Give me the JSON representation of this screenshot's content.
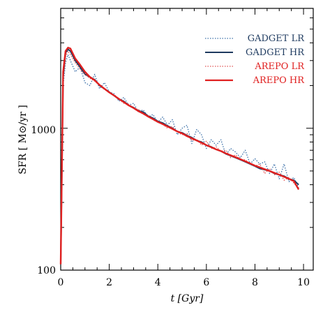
{
  "chart_data": {
    "type": "line",
    "title": "",
    "xlabel": "t  [Gyr]",
    "ylabel": "SFR  [ M⊙/yr ]",
    "xlim": [
      0,
      10.4
    ],
    "ylim": [
      100,
      7000
    ],
    "yscale": "log",
    "legend_position": "top-right",
    "x_ticks": [
      "0",
      "2",
      "4",
      "6",
      "8",
      "10"
    ],
    "y_ticks": [
      "100",
      "1000"
    ],
    "grid": false,
    "series": [
      {
        "name": "GADGET LR",
        "color": "#3a6fa8",
        "style": "dotted",
        "x": [
          0.0,
          0.1,
          0.2,
          0.3,
          0.4,
          0.6,
          0.8,
          1.0,
          1.2,
          1.4,
          1.6,
          1.8,
          2.0,
          2.2,
          2.4,
          2.6,
          2.8,
          3.0,
          3.2,
          3.4,
          3.6,
          3.8,
          4.0,
          4.2,
          4.4,
          4.6,
          4.8,
          5.0,
          5.2,
          5.4,
          5.6,
          5.8,
          6.0,
          6.2,
          6.4,
          6.6,
          6.8,
          7.0,
          7.2,
          7.4,
          7.6,
          7.8,
          8.0,
          8.2,
          8.4,
          8.6,
          8.8,
          9.0,
          9.2,
          9.4,
          9.6,
          9.8
        ],
        "values": [
          110,
          2000,
          2900,
          3300,
          3000,
          2500,
          2700,
          2100,
          2000,
          2400,
          1900,
          2100,
          1800,
          1750,
          1550,
          1650,
          1450,
          1500,
          1300,
          1350,
          1200,
          1250,
          1100,
          1200,
          1050,
          1150,
          900,
          1000,
          1050,
          780,
          980,
          900,
          720,
          830,
          760,
          830,
          650,
          720,
          680,
          620,
          700,
          560,
          610,
          560,
          580,
          480,
          560,
          440,
          560,
          420,
          450,
          380
        ]
      },
      {
        "name": "GADGET HR",
        "color": "#1e3a5f",
        "style": "solid",
        "x": [
          0.0,
          0.1,
          0.2,
          0.3,
          0.4,
          0.6,
          0.8,
          1.0,
          1.2,
          1.4,
          1.6,
          1.8,
          2.0,
          2.2,
          2.4,
          2.6,
          2.8,
          3.0,
          3.2,
          3.4,
          3.6,
          3.8,
          4.0,
          4.2,
          4.4,
          4.6,
          4.8,
          5.0,
          5.2,
          5.4,
          5.6,
          5.8,
          6.0,
          6.2,
          6.4,
          6.6,
          6.8,
          7.0,
          7.2,
          7.4,
          7.6,
          7.8,
          8.0,
          8.2,
          8.4,
          8.6,
          8.8,
          9.0,
          9.2,
          9.4,
          9.6,
          9.8
        ],
        "values": [
          110,
          2300,
          3400,
          3600,
          3500,
          3000,
          2700,
          2400,
          2300,
          2200,
          2000,
          1900,
          1800,
          1700,
          1600,
          1550,
          1450,
          1400,
          1330,
          1300,
          1220,
          1180,
          1120,
          1090,
          1040,
          1000,
          950,
          930,
          890,
          860,
          820,
          800,
          760,
          740,
          710,
          690,
          660,
          640,
          620,
          600,
          580,
          560,
          540,
          520,
          510,
          500,
          480,
          470,
          460,
          440,
          430,
          400
        ]
      },
      {
        "name": "AREPO LR",
        "color": "#e05050",
        "style": "dotted",
        "x": [
          0.0,
          0.1,
          0.2,
          0.3,
          0.4,
          0.6,
          0.8,
          1.0,
          1.2,
          1.4,
          1.6,
          1.8,
          2.0,
          2.2,
          2.4,
          2.6,
          2.8,
          3.0,
          3.2,
          3.4,
          3.6,
          3.8,
          4.0,
          4.2,
          4.4,
          4.6,
          4.8,
          5.0,
          5.2,
          5.4,
          5.6,
          5.8,
          6.0,
          6.2,
          6.4,
          6.6,
          6.8,
          7.0,
          7.2,
          7.4,
          7.6,
          7.8,
          8.0,
          8.2,
          8.4,
          8.6,
          8.8,
          9.0,
          9.2,
          9.4,
          9.6,
          9.8
        ],
        "values": [
          110,
          2200,
          3200,
          3500,
          3300,
          2900,
          2600,
          2400,
          2250,
          2150,
          2000,
          1880,
          1780,
          1700,
          1600,
          1500,
          1480,
          1380,
          1360,
          1250,
          1230,
          1150,
          1100,
          1070,
          1000,
          1030,
          940,
          900,
          920,
          820,
          840,
          760,
          810,
          720,
          740,
          690,
          700,
          620,
          650,
          600,
          600,
          560,
          540,
          560,
          480,
          520,
          470,
          490,
          430,
          450,
          410,
          380
        ]
      },
      {
        "name": "AREPO HR",
        "color": "#e02020",
        "style": "solid",
        "x": [
          0.0,
          0.1,
          0.2,
          0.3,
          0.4,
          0.6,
          0.8,
          1.0,
          1.2,
          1.4,
          1.6,
          1.8,
          2.0,
          2.2,
          2.4,
          2.6,
          2.8,
          3.0,
          3.2,
          3.4,
          3.6,
          3.8,
          4.0,
          4.2,
          4.4,
          4.6,
          4.8,
          5.0,
          5.2,
          5.4,
          5.6,
          5.8,
          6.0,
          6.2,
          6.4,
          6.6,
          6.8,
          7.0,
          7.2,
          7.4,
          7.6,
          7.8,
          8.0,
          8.2,
          8.4,
          8.6,
          8.8,
          9.0,
          9.2,
          9.4,
          9.6,
          9.8
        ],
        "values": [
          110,
          2500,
          3500,
          3700,
          3650,
          3100,
          2800,
          2500,
          2300,
          2180,
          2020,
          1900,
          1790,
          1700,
          1610,
          1530,
          1450,
          1390,
          1320,
          1270,
          1210,
          1160,
          1110,
          1070,
          1030,
          990,
          950,
          920,
          880,
          850,
          820,
          790,
          760,
          735,
          710,
          690,
          665,
          645,
          625,
          605,
          585,
          565,
          545,
          530,
          515,
          500,
          485,
          470,
          455,
          440,
          425,
          370
        ]
      }
    ]
  }
}
